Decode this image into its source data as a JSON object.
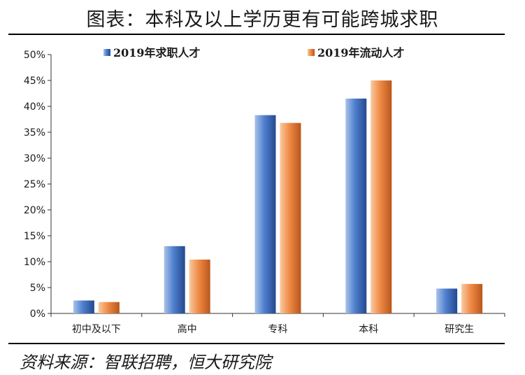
{
  "header": {
    "title": "图表：本科及以上学历更有可能跨城求职"
  },
  "footer": {
    "source": "资料来源：智联招聘，恒大研究院"
  },
  "chart_data": {
    "type": "bar",
    "title": "",
    "xlabel": "",
    "ylabel": "",
    "categories": [
      "初中及以下",
      "高中",
      "专科",
      "本科",
      "研究生"
    ],
    "series": [
      {
        "name": "2019年求职人才",
        "color": "#4472c4",
        "values": [
          2.5,
          13.0,
          38.3,
          41.5,
          4.8
        ]
      },
      {
        "name": "2019年流动人才",
        "color": "#ed7d31",
        "values": [
          2.2,
          10.4,
          36.8,
          45.0,
          5.7
        ]
      }
    ],
    "ylim": [
      0,
      50
    ],
    "yticks": [
      0,
      5,
      10,
      15,
      20,
      25,
      30,
      35,
      40,
      45,
      50
    ],
    "ytick_labels": [
      "0%",
      "5%",
      "10%",
      "15%",
      "20%",
      "25%",
      "30%",
      "35%",
      "40%",
      "45%",
      "50%"
    ],
    "grid": false,
    "legend_position": "top"
  }
}
